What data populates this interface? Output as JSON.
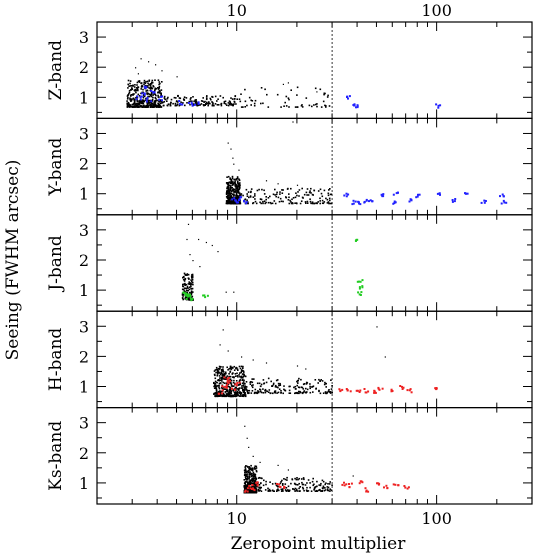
{
  "chart_data": {
    "type": "scatter",
    "xlabel": "Zeropoint multiplier",
    "ylabel": "Seeing (FWHM arcsec)",
    "xscale": "log",
    "xlim": [
      2,
      300
    ],
    "x_ticks": [
      10,
      100
    ],
    "x_tick_labels": [
      "10",
      "100"
    ],
    "vline_x": 30,
    "ylim": [
      0.3,
      3.5
    ],
    "y_ticks": [
      1,
      2,
      3
    ],
    "y_tick_labels": [
      "1",
      "2",
      "3"
    ],
    "panels": [
      {
        "name": "Z-band",
        "label": "Z-band",
        "highlight_color": "#2222ff",
        "clusters": [
          {
            "xmin": 2.8,
            "xmax": 4.2,
            "ymin": 0.7,
            "ymax": 1.6,
            "n": 400
          },
          {
            "xmin": 4.2,
            "xmax": 10,
            "ymin": 0.75,
            "ymax": 1.1,
            "n": 160
          },
          {
            "xmin": 10,
            "xmax": 30,
            "ymin": 0.7,
            "ymax": 1.4,
            "n": 60
          }
        ],
        "outliers": [
          [
            3.3,
            2.3
          ],
          [
            3.6,
            2.2
          ],
          [
            3.1,
            2.0
          ],
          [
            4.2,
            1.9
          ],
          [
            3.9,
            2.1
          ],
          [
            3.2,
            1.8
          ],
          [
            5.0,
            1.7
          ],
          [
            17,
            1.45
          ],
          [
            18,
            1.5
          ],
          [
            25,
            1.2
          ]
        ],
        "highlights": [
          [
            3.2,
            1.0
          ],
          [
            3.4,
            1.1
          ],
          [
            3.6,
            0.95
          ],
          [
            3.8,
            1.2
          ],
          [
            3.5,
            1.35
          ],
          [
            4.1,
            1.0
          ],
          [
            5.2,
            0.85
          ],
          [
            5.8,
            0.8
          ],
          [
            6.2,
            0.85
          ],
          [
            36,
            1.05
          ],
          [
            38,
            0.75
          ],
          [
            40,
            0.72
          ],
          [
            100,
            0.75
          ]
        ]
      },
      {
        "name": "Y-band",
        "label": "Y-band",
        "highlight_color": "#2222ff",
        "clusters": [
          {
            "xmin": 8.8,
            "xmax": 10.3,
            "ymin": 0.7,
            "ymax": 1.6,
            "n": 350
          },
          {
            "xmin": 10.3,
            "xmax": 30,
            "ymin": 0.7,
            "ymax": 1.2,
            "n": 160
          }
        ],
        "outliers": [
          [
            9.0,
            2.7
          ],
          [
            9.3,
            2.5
          ],
          [
            9.5,
            2.2
          ],
          [
            9.6,
            2.0
          ],
          [
            10.2,
            1.8
          ],
          [
            14,
            1.45
          ],
          [
            16,
            1.35
          ],
          [
            19,
            3.4
          ],
          [
            20,
            1.3
          ]
        ],
        "highlights": [
          [
            9.6,
            0.85
          ],
          [
            10.0,
            0.8
          ],
          [
            10.4,
            0.9
          ],
          [
            11.0,
            0.78
          ],
          [
            35,
            1.0
          ],
          [
            38,
            0.75
          ],
          [
            41,
            0.75
          ],
          [
            43,
            0.8
          ],
          [
            46,
            0.75
          ],
          [
            52,
            1.0
          ],
          [
            60,
            0.75
          ],
          [
            62,
            1.05
          ],
          [
            72,
            0.8
          ],
          [
            80,
            0.95
          ],
          [
            100,
            1.0
          ],
          [
            120,
            0.8
          ],
          [
            140,
            1.0
          ],
          [
            170,
            0.75
          ],
          [
            210,
            1.0
          ],
          [
            215,
            0.75
          ]
        ]
      },
      {
        "name": "J-band",
        "label": "J-band",
        "highlight_color": "#22cc22",
        "clusters": [
          {
            "xmin": 5.3,
            "xmax": 6.0,
            "ymin": 0.7,
            "ymax": 1.6,
            "n": 130
          }
        ],
        "outliers": [
          [
            5.7,
            3.2
          ],
          [
            5.6,
            2.7
          ],
          [
            6.4,
            2.7
          ],
          [
            7.0,
            2.6
          ],
          [
            7.5,
            2.5
          ],
          [
            8.0,
            2.3
          ],
          [
            5.8,
            2.2
          ],
          [
            6.0,
            2.0
          ],
          [
            6.5,
            1.8
          ],
          [
            8.8,
            0.95
          ],
          [
            9.6,
            0.95
          ]
        ],
        "highlights": [
          [
            5.5,
            0.8
          ],
          [
            5.6,
            0.9
          ],
          [
            5.75,
            0.85
          ],
          [
            5.9,
            0.75
          ],
          [
            5.45,
            0.95
          ],
          [
            6.9,
            0.8
          ],
          [
            41,
            1.3
          ],
          [
            41,
            1.1
          ],
          [
            41,
            0.9
          ],
          [
            40,
            2.7
          ]
        ]
      },
      {
        "name": "H-band",
        "label": "H-band",
        "highlight_color": "#ee2222",
        "clusters": [
          {
            "xmin": 7.6,
            "xmax": 11,
            "ymin": 0.7,
            "ymax": 1.7,
            "n": 420
          },
          {
            "xmin": 11,
            "xmax": 30,
            "ymin": 0.8,
            "ymax": 1.3,
            "n": 180
          }
        ],
        "outliers": [
          [
            8.5,
            2.9
          ],
          [
            8.2,
            2.4
          ],
          [
            9.0,
            2.2
          ],
          [
            10.5,
            2.0
          ],
          [
            12,
            1.9
          ],
          [
            14,
            1.8
          ],
          [
            20,
            1.7
          ],
          [
            22,
            1.6
          ],
          [
            50,
            3.0
          ],
          [
            55,
            2.0
          ]
        ],
        "highlights": [
          [
            8.2,
            0.85
          ],
          [
            8.6,
            1.0
          ],
          [
            9.0,
            1.15
          ],
          [
            9.5,
            0.9
          ],
          [
            10.0,
            1.1
          ],
          [
            8.8,
            1.3
          ],
          [
            33,
            0.9
          ],
          [
            36,
            0.9
          ],
          [
            40,
            0.85
          ],
          [
            44,
            0.9
          ],
          [
            48,
            0.85
          ],
          [
            52,
            0.95
          ],
          [
            58,
            0.88
          ],
          [
            66,
            1.0
          ],
          [
            72,
            0.9
          ],
          [
            100,
            1.0
          ]
        ]
      },
      {
        "name": "Ks-band",
        "label": "Ks-band",
        "highlight_color": "#ee2222",
        "clusters": [
          {
            "xmin": 10.8,
            "xmax": 12.5,
            "ymin": 0.7,
            "ymax": 1.6,
            "n": 320
          },
          {
            "xmin": 12.5,
            "xmax": 30,
            "ymin": 0.75,
            "ymax": 1.2,
            "n": 170
          }
        ],
        "outliers": [
          [
            10.9,
            2.9
          ],
          [
            11.2,
            2.5
          ],
          [
            11.4,
            2.2
          ],
          [
            12,
            1.9
          ],
          [
            13,
            1.7
          ],
          [
            16,
            1.6
          ],
          [
            18,
            1.45
          ],
          [
            38,
            1.25
          ]
        ],
        "highlights": [
          [
            11.2,
            0.8
          ],
          [
            11.6,
            0.9
          ],
          [
            12.0,
            0.85
          ],
          [
            12.5,
            1.0
          ],
          [
            16,
            0.95
          ],
          [
            17,
            0.85
          ],
          [
            34,
            1.0
          ],
          [
            37,
            0.95
          ],
          [
            41,
            1.05
          ],
          [
            44,
            0.8
          ],
          [
            50,
            1.0
          ],
          [
            55,
            0.9
          ],
          [
            62,
            1.0
          ],
          [
            70,
            0.9
          ]
        ]
      }
    ]
  }
}
